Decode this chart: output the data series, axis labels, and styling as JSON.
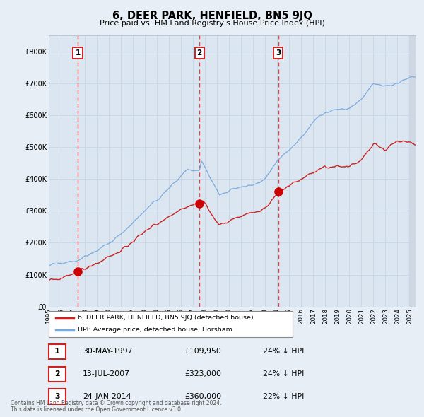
{
  "title": "6, DEER PARK, HENFIELD, BN5 9JQ",
  "subtitle": "Price paid vs. HM Land Registry's House Price Index (HPI)",
  "background_color": "#e8eef5",
  "plot_bg_color": "#dce6f0",
  "grid_color": "#c8d8e8",
  "hpi_line_color": "#7aaadd",
  "price_line_color": "#cc2222",
  "dot_color": "#cc0000",
  "dashed_line_color": "#dd3333",
  "ylim": [
    0,
    850000
  ],
  "yticks": [
    0,
    100000,
    200000,
    300000,
    400000,
    500000,
    600000,
    700000,
    800000
  ],
  "ytick_labels": [
    "£0",
    "£100K",
    "£200K",
    "£300K",
    "£400K",
    "£500K",
    "£600K",
    "£700K",
    "£800K"
  ],
  "xlim_start": 1995.0,
  "xlim_end": 2025.5,
  "xticks": [
    1995,
    1996,
    1997,
    1998,
    1999,
    2000,
    2001,
    2002,
    2003,
    2004,
    2005,
    2006,
    2007,
    2008,
    2009,
    2010,
    2011,
    2012,
    2013,
    2014,
    2015,
    2016,
    2017,
    2018,
    2019,
    2020,
    2021,
    2022,
    2023,
    2024,
    2025
  ],
  "sale1_x": 1997.41,
  "sale1_y": 109950,
  "sale1_label": "1",
  "sale1_date": "30-MAY-1997",
  "sale1_price": "£109,950",
  "sale1_hpi": "24% ↓ HPI",
  "sale2_x": 2007.53,
  "sale2_y": 323000,
  "sale2_label": "2",
  "sale2_date": "13-JUL-2007",
  "sale2_price": "£323,000",
  "sale2_hpi": "24% ↓ HPI",
  "sale3_x": 2014.07,
  "sale3_y": 360000,
  "sale3_label": "3",
  "sale3_date": "24-JAN-2014",
  "sale3_price": "£360,000",
  "sale3_hpi": "22% ↓ HPI",
  "legend_label1": "6, DEER PARK, HENFIELD, BN5 9JQ (detached house)",
  "legend_label2": "HPI: Average price, detached house, Horsham",
  "footer1": "Contains HM Land Registry data © Crown copyright and database right 2024.",
  "footer2": "This data is licensed under the Open Government Licence v3.0."
}
